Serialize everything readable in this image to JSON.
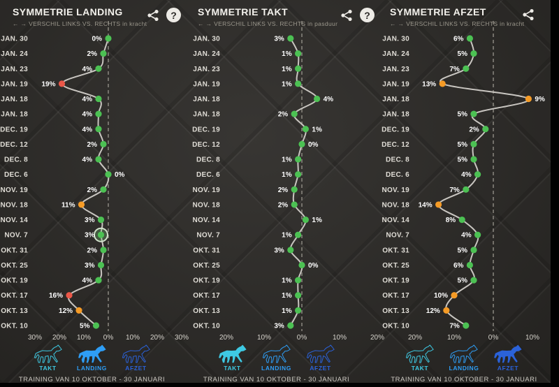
{
  "palette": {
    "green": "#4cc153",
    "orange": "#f59b26",
    "red": "#ea5748",
    "curve_line": "#c9c6c1",
    "zero_dash": "#8f8c84",
    "date_text": "#e0ddd6",
    "value_text": "#ffffff",
    "tick_text": "#d6d3cc",
    "takt": "#3ec9e3",
    "landing": "#2e9df5",
    "afzet": "#2b62d9"
  },
  "legend": [
    {
      "id": "takt",
      "label": "TAKT"
    },
    {
      "id": "landing",
      "label": "LANDING"
    },
    {
      "id": "afzet",
      "label": "AFZET"
    }
  ],
  "footer": {
    "training_label": "TRAINING VAN 10 OKTOBER - 30 JANUARI"
  },
  "chart_data": [
    {
      "type": "line",
      "title": "SYMMETRIE LANDING",
      "subtitle": "← → VERSCHIL LINKS VS. RECHTS in kracht",
      "active_legend": "landing",
      "show_help": true,
      "categories": [
        "JAN. 30",
        "JAN. 24",
        "JAN. 23",
        "JAN. 19",
        "JAN. 18",
        "JAN. 18",
        "DEC. 19",
        "DEC. 12",
        "DEC. 8",
        "DEC. 6",
        "NOV. 19",
        "NOV. 18",
        "NOV. 14",
        "NOV. 7",
        "OKT. 31",
        "OKT. 25",
        "OKT. 19",
        "OKT. 17",
        "OKT. 13",
        "OKT. 10"
      ],
      "values": [
        0,
        -2,
        -4,
        -19,
        -4,
        -4,
        -4,
        -2,
        -4,
        0,
        -2,
        -11,
        -3,
        -3,
        -2,
        -3,
        -4,
        -16,
        -12,
        -5
      ],
      "labels": [
        "0%",
        "2%",
        "4%",
        "19%",
        "4%",
        "4%",
        "4%",
        "2%",
        "4%",
        "0%",
        "2%",
        "11%",
        "3%",
        "3%",
        "2%",
        "3%",
        "4%",
        "16%",
        "12%",
        "5%"
      ],
      "label_sides": [
        "L",
        "L",
        "L",
        "L",
        "L",
        "L",
        "L",
        "L",
        "L",
        "R",
        "L",
        "L",
        "L",
        "L",
        "L",
        "L",
        "L",
        "L",
        "L",
        "L"
      ],
      "highlight_index": 13,
      "axis_ticks": [
        {
          "v": -30,
          "label": "30%"
        },
        {
          "v": -20,
          "label": "20%"
        },
        {
          "v": -10,
          "label": "10%"
        },
        {
          "v": 0,
          "label": "0%"
        },
        {
          "v": 10,
          "label": "10%"
        },
        {
          "v": 20,
          "label": "20%"
        },
        {
          "v": 30,
          "label": "30%"
        }
      ],
      "xlim": [
        -30,
        30
      ]
    },
    {
      "type": "line",
      "title": "SYMMETRIE TAKT",
      "subtitle": "← → VERSCHIL LINKS VS. RECHTS in pasduur",
      "active_legend": "takt",
      "show_help": true,
      "categories": [
        "JAN. 30",
        "JAN. 24",
        "JAN. 23",
        "JAN. 19",
        "JAN. 18",
        "JAN. 18",
        "DEC. 19",
        "DEC. 12",
        "DEC. 8",
        "DEC. 6",
        "NOV. 19",
        "NOV. 18",
        "NOV. 14",
        "NOV. 7",
        "OKT. 31",
        "OKT. 25",
        "OKT. 19",
        "OKT. 17",
        "OKT. 13",
        "OKT. 10"
      ],
      "values": [
        -3,
        -1,
        -1,
        -1,
        4,
        -2,
        1,
        0,
        -1,
        -1,
        -2,
        -2,
        1,
        -1,
        -3,
        0,
        -1,
        -1,
        -1,
        -3
      ],
      "labels": [
        "3%",
        "1%",
        "1%",
        "1%",
        "4%",
        "2%",
        "1%",
        "0%",
        "1%",
        "1%",
        "2%",
        "2%",
        "1%",
        "1%",
        "3%",
        "0%",
        "1%",
        "1%",
        "1%",
        "3%"
      ],
      "label_sides": [
        "L",
        "L",
        "L",
        "L",
        "R",
        "L",
        "R",
        "R",
        "L",
        "L",
        "L",
        "L",
        "R",
        "L",
        "L",
        "R",
        "L",
        "L",
        "L",
        "L"
      ],
      "highlight_index": null,
      "axis_ticks": [
        {
          "v": -20,
          "label": "20%"
        },
        {
          "v": -10,
          "label": "10%"
        },
        {
          "v": 0,
          "label": "0%"
        },
        {
          "v": 10,
          "label": "10%"
        },
        {
          "v": 20,
          "label": "20%"
        }
      ],
      "xlim": [
        -20,
        20
      ]
    },
    {
      "type": "line",
      "title": "SYMMETRIE AFZET",
      "subtitle": "← → VERSCHIL LINKS VS. RECHTS in kracht",
      "active_legend": "afzet",
      "show_help": false,
      "categories": [
        "JAN. 30",
        "JAN. 24",
        "JAN. 23",
        "JAN. 19",
        "JAN. 18",
        "JAN. 18",
        "DEC. 19",
        "DEC. 12",
        "DEC. 8",
        "DEC. 6",
        "NOV. 19",
        "NOV. 18",
        "NOV. 14",
        "NOV. 7",
        "OKT. 31",
        "OKT. 25",
        "OKT. 19",
        "OKT. 17",
        "OKT. 13",
        "OKT. 10"
      ],
      "values": [
        -6,
        -5,
        -7,
        -13,
        9,
        -5,
        -2,
        -5,
        -5,
        -4,
        -7,
        -14,
        -8,
        -4,
        -5,
        -6,
        -5,
        -10,
        -12,
        -7
      ],
      "labels": [
        "6%",
        "5%",
        "7%",
        "13%",
        "9%",
        "5%",
        "2%",
        "5%",
        "5%",
        "4%",
        "7%",
        "14%",
        "8%",
        "4%",
        "5%",
        "6%",
        "5%",
        "10%",
        "12%",
        "7%"
      ],
      "label_sides": [
        "L",
        "L",
        "L",
        "L",
        "R",
        "L",
        "L",
        "L",
        "L",
        "L",
        "L",
        "L",
        "L",
        "L",
        "L",
        "L",
        "L",
        "L",
        "L",
        "L"
      ],
      "highlight_index": null,
      "axis_ticks": [
        {
          "v": -20,
          "label": "20%"
        },
        {
          "v": -10,
          "label": "10%"
        },
        {
          "v": 0,
          "label": "0%"
        },
        {
          "v": 10,
          "label": "10%"
        }
      ],
      "xlim": [
        -25,
        15
      ]
    }
  ]
}
